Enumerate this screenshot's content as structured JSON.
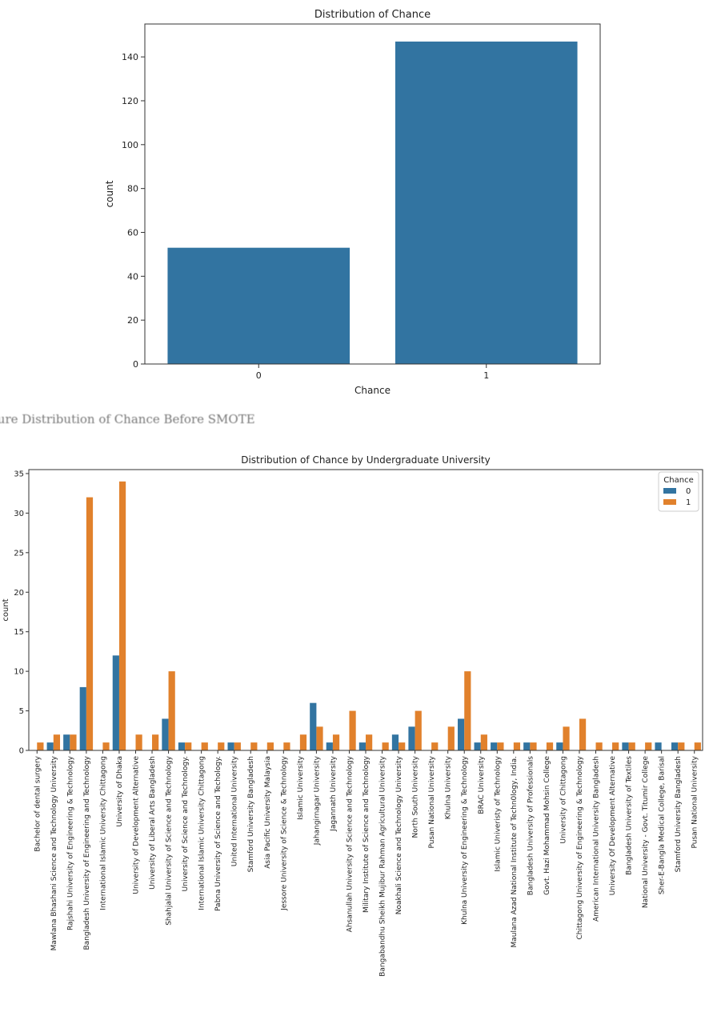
{
  "caption": "Figure Distribution of Chance Before SMOTE",
  "chart_data": [
    {
      "type": "bar",
      "title": "Distribution of Chance",
      "xlabel": "Chance",
      "ylabel": "count",
      "categories": [
        "0",
        "1"
      ],
      "values": [
        53,
        147
      ],
      "ylim": [
        0,
        155
      ],
      "yticks": [
        0,
        20,
        40,
        60,
        80,
        100,
        120,
        140
      ],
      "color": "#3274a1"
    },
    {
      "type": "bar",
      "title": "Distribution of Chance by Undergraduate University",
      "xlabel": "",
      "ylabel": "count",
      "ylim": [
        0,
        35.5
      ],
      "yticks": [
        0,
        5,
        10,
        15,
        20,
        25,
        30,
        35
      ],
      "legend": {
        "title": "Chance",
        "position": "top-right"
      },
      "categories": [
        "Bachelor of dental surgery",
        "Mawlana Bhashani Science and Technology University",
        "Rajshahi University of Engineering & Technology",
        "Bangladesh University of Engineering and Technology",
        "International Islamic University Chittagong",
        "University of Dhaka",
        "University of Development Alternative",
        "University of Liberal Arts Bangladesh",
        "Shahjalal University of Science and Technology",
        "University of Science and Technology.",
        "International Islamic University Chittagong",
        "Pabna University of Science and Techology.",
        "United International University",
        "Stamford University Bangladesh",
        "Asia Pacific University Malaysia",
        "Jessore University of Science & Technology",
        "Islamic University",
        "Jahangirnagar University",
        "Jagannath University",
        "Ahsanullah University of Science and Technology",
        "Military Institute of Science and Technology",
        "Bangabandhu Sheikh Mujibur Rahman Agricultural University",
        "Noakhali Science and Technology University",
        "North South University",
        "Pusan National University",
        "Khulna University",
        "Khulna University of Engineering & Technology",
        "BRAC University",
        "Islamic Univeristy of Technology",
        "Maulana Azad National Institute of Techn0logy, India.",
        "Bangladesh University of Professionals",
        "Govt. Hazi Mohammad Mohsin College",
        "University of Chittagong",
        "Chittagong University of Engineering & Technology",
        "American International University Bangladesh",
        "University Of Development Alternative",
        "Bangladesh University of Textiles",
        "National University - Govt. Titumir College",
        "Sher-E-Bangla Medical College, Barisal",
        "Stamford University Bangladesh ",
        "Pusan National University "
      ],
      "series": [
        {
          "name": "0",
          "color": "#3274a1",
          "values": [
            0,
            1,
            2,
            8,
            0,
            12,
            0,
            0,
            4,
            1,
            0,
            0,
            1,
            0,
            0,
            0,
            0,
            6,
            1,
            0,
            1,
            0,
            2,
            3,
            0,
            0,
            4,
            1,
            1,
            0,
            1,
            0,
            1,
            0,
            0,
            0,
            1,
            0,
            1,
            1,
            0
          ]
        },
        {
          "name": "1",
          "color": "#e1812c",
          "values": [
            1,
            2,
            2,
            32,
            1,
            34,
            2,
            2,
            10,
            1,
            1,
            1,
            1,
            1,
            1,
            1,
            2,
            3,
            2,
            5,
            2,
            1,
            1,
            5,
            1,
            3,
            10,
            2,
            1,
            1,
            1,
            1,
            3,
            4,
            1,
            1,
            1,
            1,
            0,
            1,
            1
          ]
        }
      ]
    }
  ]
}
